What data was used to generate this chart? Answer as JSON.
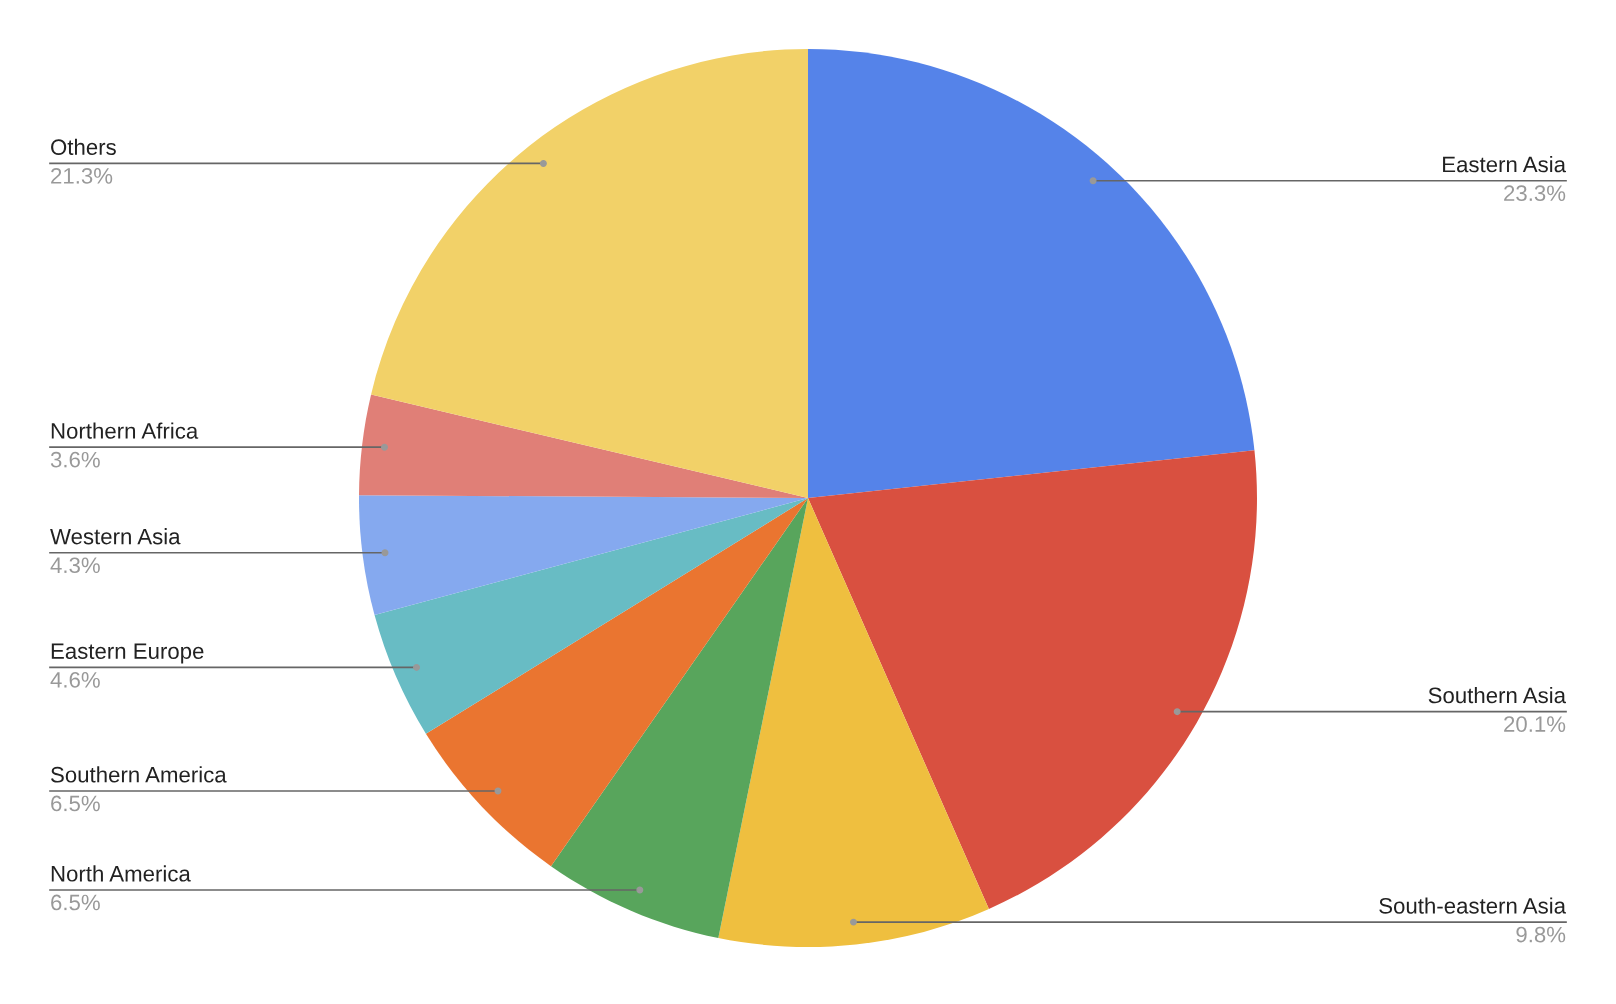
{
  "chart_data": {
    "type": "pie",
    "categories": [
      "Eastern Asia",
      "Southern Asia",
      "South-eastern Asia",
      "North America",
      "Southern America",
      "Eastern Europe",
      "Western Asia",
      "Northern Africa",
      "Others"
    ],
    "values": [
      23.3,
      20.1,
      9.8,
      6.5,
      6.5,
      4.6,
      4.3,
      3.6,
      21.3
    ],
    "colors": [
      "#5583e9",
      "#d95040",
      "#efbf3f",
      "#58a55c",
      "#ea7530",
      "#68bcc4",
      "#85a9ef",
      "#e07f77",
      "#f2d168"
    ],
    "value_labels": [
      "23.3%",
      "20.1%",
      "9.8%",
      "6.5%",
      "6.5%",
      "4.6%",
      "4.3%",
      "3.6%",
      "21.3%"
    ]
  }
}
